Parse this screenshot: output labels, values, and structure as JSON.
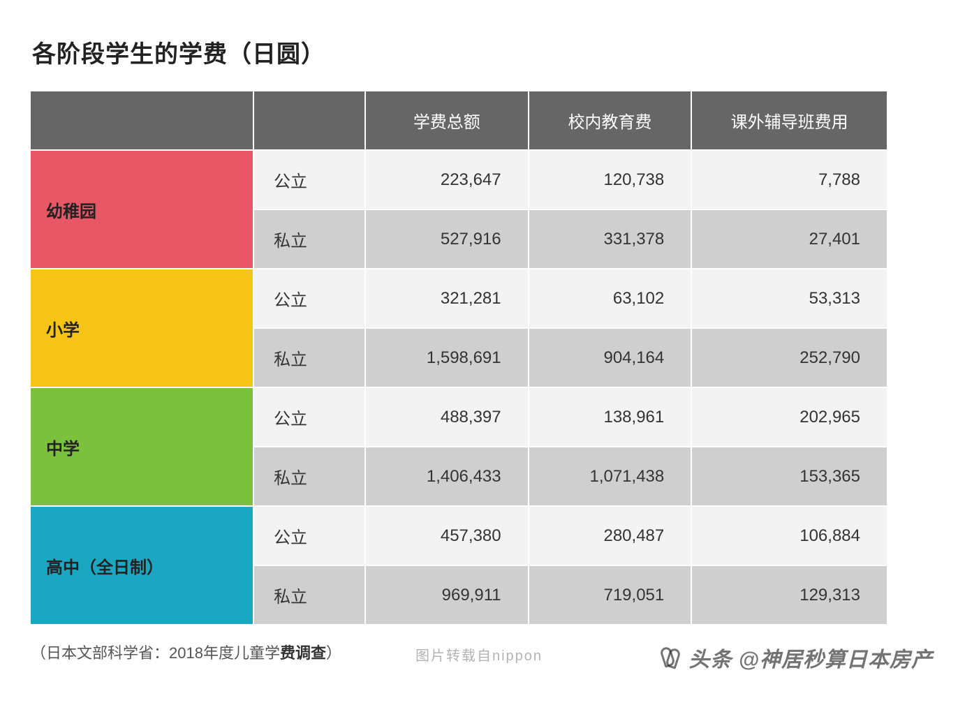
{
  "title": "各阶段学生的学费（日圆）",
  "columns": [
    "学费总额",
    "校内教育费",
    "课外辅导班费用"
  ],
  "type_labels": {
    "public": "公立",
    "private": "私立"
  },
  "stages": [
    {
      "name": "幼稚园",
      "color": "#e85765",
      "public": [
        "223,647",
        "120,738",
        "7,788"
      ],
      "private": [
        "527,916",
        "331,378",
        "27,401"
      ]
    },
    {
      "name": "小学",
      "color": "#f6c416",
      "public": [
        "321,281",
        "63,102",
        "53,313"
      ],
      "private": [
        "1,598,691",
        "904,164",
        "252,790"
      ]
    },
    {
      "name": "中学",
      "color": "#7cc13e",
      "public": [
        "488,397",
        "138,961",
        "202,965"
      ],
      "private": [
        "1,406,433",
        "1,071,438",
        "153,365"
      ]
    },
    {
      "name": "高中（全日制）",
      "color": "#1ba7c2",
      "public": [
        "457,380",
        "280,487",
        "106,884"
      ],
      "private": [
        "969,911",
        "719,051",
        "129,313"
      ]
    }
  ],
  "footnote_plain": "（日本文部科学省：2018年度儿童学",
  "footnote_bold": "费调查",
  "footnote_tail": "）",
  "source_line": "图片转载自nippon",
  "watermark": "头条 @神居秒算日本房产",
  "col_widths": {
    "stage": 320,
    "type": 160,
    "val": 250
  },
  "styling": {
    "header_bg": "#666666",
    "header_fg": "#ffffff",
    "row_light_bg": "#f3f3f3",
    "row_dark_bg": "#cfcfcf",
    "border_color": "#ffffff",
    "title_fontsize": 34,
    "cell_fontsize": 24,
    "footnote_fontsize": 22
  }
}
